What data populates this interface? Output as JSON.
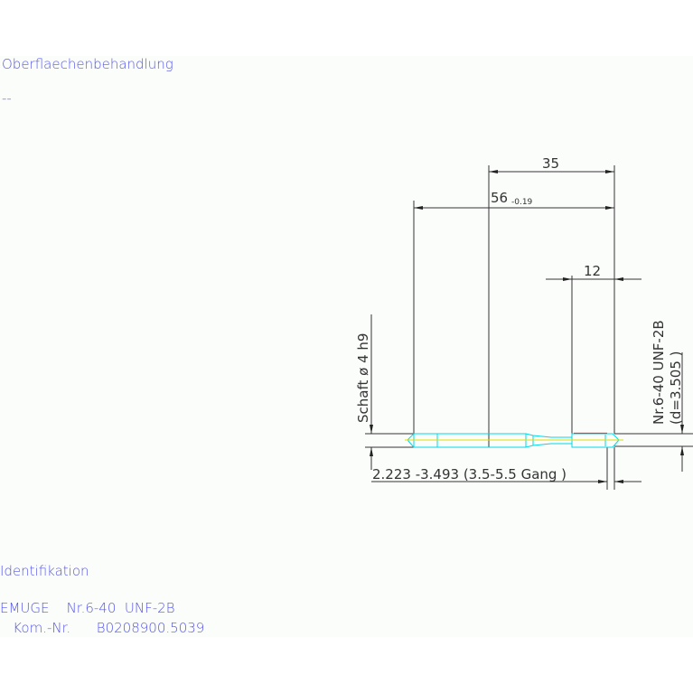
{
  "surface": {
    "label": "Oberflaechenbehandlung",
    "value": "--"
  },
  "identification": {
    "label": "Identifikation",
    "line1": "EMUGE    Nr.6-40  UNF-2B",
    "line2": "   Kom.-Nr.      B0208900.5039"
  },
  "drawing": {
    "dim_overall": "56",
    "dim_overall_tol": "-0.19",
    "dim_35": "35",
    "dim_12": "12",
    "shank_label": "Schaft  ø  4  h9",
    "thread_label": "Nr.6-40  UNF-2B",
    "thread_diameter": "(d=3.505 )",
    "bottom_label": "2.223  -3.493 (3.5-5.5  Gang   )"
  },
  "colors": {
    "text": "#5555ee",
    "dimension": "#333333",
    "tool": "#00d8e8",
    "thread": "#ff3030",
    "axis": "#e0e000"
  }
}
